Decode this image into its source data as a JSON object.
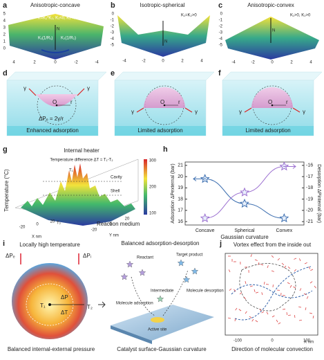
{
  "a": {
    "label": "a",
    "title": "Anisotropic-concave",
    "formula": "K=K₁*K₂, K₁<0, K₂<0",
    "k1": "K₁(1/R₁)",
    "k2": "K₂(1/R₂)",
    "n": "N",
    "zticks": [
      5,
      4,
      3,
      2,
      1,
      0
    ],
    "xticks": [
      4,
      2,
      0,
      -2,
      -4
    ]
  },
  "b": {
    "label": "b",
    "title": "Isotropic-spherical",
    "formula": "K₁=K₂>0",
    "k1": "K₁(1/R₁)",
    "k2": "K₂(1/R₂)",
    "n": "N",
    "zticks": [
      0,
      -1,
      -2,
      -3,
      -4,
      -5
    ],
    "xticks": [
      -4,
      -2,
      0,
      2,
      4
    ]
  },
  "c": {
    "label": "c",
    "title": "Anisotropic-convex",
    "formula": "K₁>0, K₂>0",
    "n": "N",
    "zticks": [
      0,
      -1,
      -2,
      -3,
      -4,
      -5
    ],
    "xticks": [
      -4,
      -2,
      0,
      2,
      4
    ]
  },
  "d": {
    "label": "d",
    "gamma": "γ",
    "o": "O",
    "r": "r",
    "formula": "ΔPₑ = 2γ/r",
    "caption": "Enhanced adsorption"
  },
  "e": {
    "label": "e",
    "gamma": "γ",
    "o": "O",
    "r": "r",
    "caption": "Limited adsorption"
  },
  "f": {
    "label": "f",
    "gamma": "γ",
    "o": "O",
    "r": "r",
    "caption": "Limited adsorption"
  },
  "g": {
    "label": "g",
    "title": "Internal heater",
    "subtitle": "Temperature difference ΔT = T₁-T₂",
    "t1": "T₁",
    "t2": "T₂",
    "cavity": "Cavity",
    "shell": "Shell",
    "medium": "Reaction medium",
    "ylabel": "Temperature (°C)",
    "xlabel": "X nm",
    "zlabel": "Y nm",
    "cticks": [
      300,
      200,
      100
    ],
    "xticks": [
      -20,
      0,
      20
    ],
    "yticks": [
      -20,
      0,
      20
    ]
  },
  "chart_data": {
    "type": "line",
    "label": "h",
    "categories": [
      "Concave",
      "Spherical",
      "Convex"
    ],
    "xlabel": "Gaussian curvature",
    "ylabel": "Adsorption ΔPexternal (bar)",
    "y2label": "Desorption ΔPinternal (bar)",
    "series": [
      {
        "name": "Adsorption",
        "color": "#3d6fb0",
        "values": [
          19.8,
          17.6,
          16.3
        ]
      },
      {
        "name": "Desorption",
        "color": "#9b6fd0",
        "axis": "y2",
        "values": [
          -20.7,
          -18.4,
          -16.1
        ]
      }
    ],
    "ylim": [
      15.7,
      21.3
    ],
    "yticks": [
      16,
      17,
      18,
      19,
      20,
      21
    ],
    "y2lim": [
      -21.3,
      -15.7
    ],
    "y2ticks": [
      -16,
      -17,
      -18,
      -19,
      -20,
      -21
    ]
  },
  "i": {
    "label": "i",
    "title": "Locally high temperature",
    "pe": "ΔPₑ",
    "pi": "ΔPᵢ",
    "t1": "T₁",
    "t2": "T₂",
    "dp": "ΔP",
    "dt": "ΔT",
    "caption": "Balanced internal-external pressure"
  },
  "m": {
    "title": "Balanced adsorption-desorption",
    "reactant": "Reactant",
    "product": "Target product",
    "intermediate": "Intermediate",
    "adsorption": "Molecule adsorption",
    "desorption": "Molecule desorption",
    "site": "Active site",
    "caption": "Catalyst surface-Gaussian curvature"
  },
  "j": {
    "label": "j",
    "title": "Vortex effect from the inside out",
    "xticks": [
      -100,
      0,
      100
    ],
    "xlabel": "X nm",
    "caption": "Direction of molecular convection"
  }
}
